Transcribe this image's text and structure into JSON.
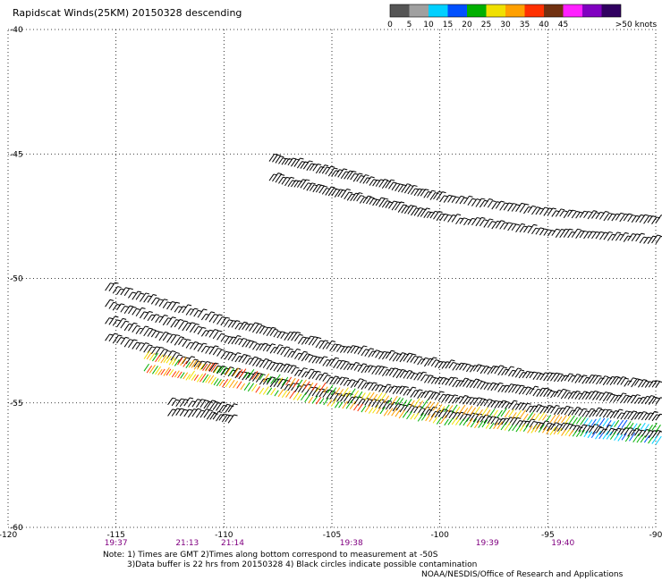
{
  "title": "Rapidscat Winds(25KM) 20150328 descending",
  "notes": {
    "line1": "Note: 1) Times are GMT 2)Times along bottom correspond to measurement at -50S",
    "line2": "3)Data buffer is 22 hrs from 20150328 4) Black circles indicate possible contamination",
    "credit": "NOAA/NESDIS/Office of Research and Applications"
  },
  "legend": {
    "units_label": ">50 knots",
    "bins": [
      {
        "label": "0",
        "color": "#555555"
      },
      {
        "label": "5",
        "color": "#a0a0a0"
      },
      {
        "label": "10",
        "color": "#00d0ff"
      },
      {
        "label": "15",
        "color": "#0050ff"
      },
      {
        "label": "20",
        "color": "#00b000"
      },
      {
        "label": "25",
        "color": "#f0e000"
      },
      {
        "label": "30",
        "color": "#ffa000"
      },
      {
        "label": "35",
        "color": "#ff3000"
      },
      {
        "label": "40",
        "color": "#703010"
      },
      {
        "label": "45",
        "color": "#ff20ff"
      },
      {
        "label": "",
        "color": "#8000c0"
      },
      {
        "label": "",
        "color": "#300060"
      }
    ]
  },
  "chart_data": {
    "type": "map",
    "title": "Rapidscat Winds(25KM) 20150328 descending",
    "xlim": [
      -120,
      -90
    ],
    "ylim": [
      -60,
      -40
    ],
    "x_ticks": [
      "-120",
      "-115",
      "-110",
      "-105",
      "-100",
      "-95",
      "-90"
    ],
    "y_ticks": [
      "-40",
      "-45",
      "-50",
      "-55",
      "-60"
    ],
    "grid": true,
    "time_labels": [
      {
        "lon": -115,
        "text": "19:37"
      },
      {
        "lon": -111.7,
        "text": "21:13"
      },
      {
        "lon": -109.6,
        "text": "21:14"
      },
      {
        "lon": -104.1,
        "text": "19:38"
      },
      {
        "lon": -97.8,
        "text": "19:39"
      },
      {
        "lon": -94.3,
        "text": "19:40"
      }
    ],
    "swaths": [
      {
        "name": "upper black swath",
        "color": "#000000",
        "path": [
          [
            -107.9,
            -45.7
          ],
          [
            -104,
            -46.5
          ],
          [
            -100,
            -47.3
          ],
          [
            -95,
            -47.9
          ],
          [
            -90,
            -48.2
          ]
        ],
        "width": 0.8
      },
      {
        "name": "middle black swath",
        "color": "#000000",
        "path": [
          [
            -115.5,
            -51.5
          ],
          [
            -110,
            -52.9
          ],
          [
            -105,
            -53.9
          ],
          [
            -100,
            -54.6
          ],
          [
            -95,
            -55.1
          ],
          [
            -90,
            -55.4
          ]
        ],
        "width": 2.0
      },
      {
        "name": "colored swath",
        "color": "#f0e000",
        "path": [
          [
            -113.7,
            -53.5
          ],
          [
            -110,
            -54.1
          ],
          [
            -105,
            -54.9
          ],
          [
            -100,
            -55.6
          ],
          [
            -95,
            -56.0
          ],
          [
            -90,
            -56.4
          ]
        ],
        "width": 0.5
      },
      {
        "name": "small black fragment",
        "color": "#000000",
        "path": [
          [
            -112.6,
            -55.3
          ],
          [
            -111,
            -55.4
          ],
          [
            -109.8,
            -55.6
          ]
        ],
        "width": 0.4
      }
    ]
  }
}
